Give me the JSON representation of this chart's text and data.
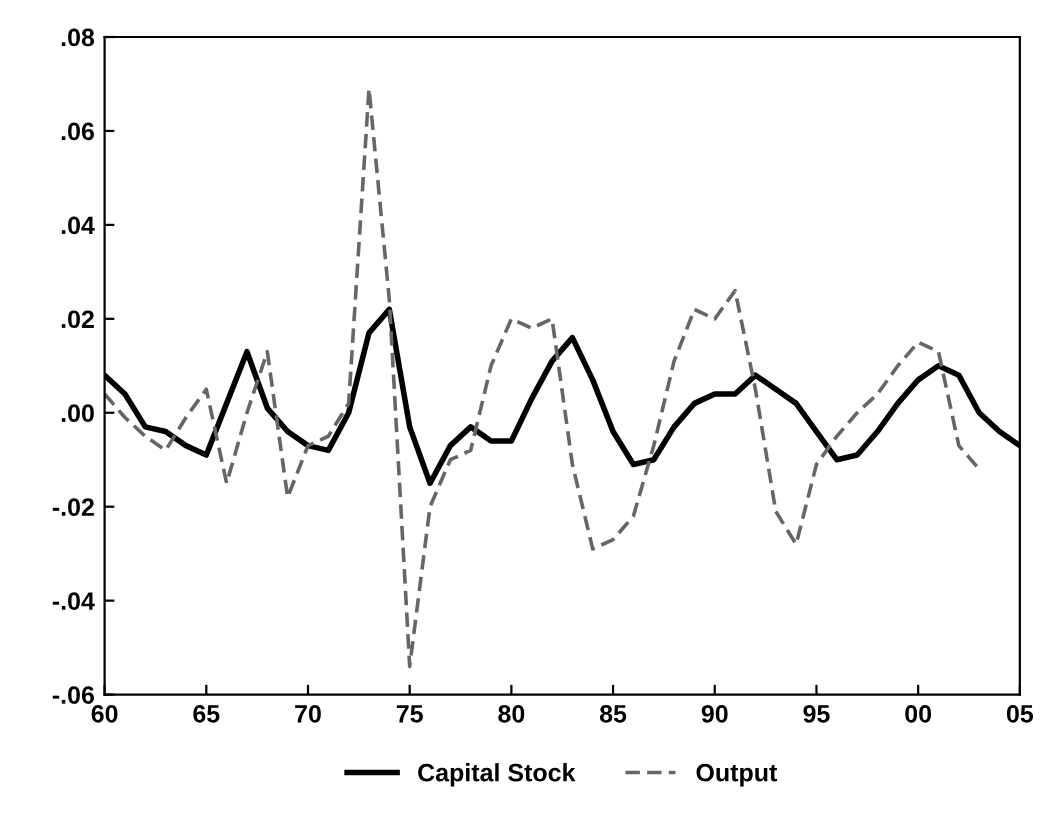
{
  "chart_data": {
    "type": "line",
    "x": [
      1960,
      1961,
      1962,
      1963,
      1964,
      1965,
      1966,
      1967,
      1968,
      1969,
      1970,
      1971,
      1972,
      1973,
      1974,
      1975,
      1976,
      1977,
      1978,
      1979,
      1980,
      1981,
      1982,
      1983,
      1984,
      1985,
      1986,
      1987,
      1988,
      1989,
      1990,
      1991,
      1992,
      1993,
      1994,
      1995,
      1996,
      1997,
      1998,
      1999,
      2000,
      2001,
      2002,
      2003,
      2004,
      2005
    ],
    "series": [
      {
        "name": "Capital Stock",
        "color": "#000000",
        "line_style": "solid",
        "values": [
          0.008,
          0.004,
          -0.003,
          -0.004,
          -0.007,
          -0.009,
          0.002,
          0.013,
          0.001,
          -0.004,
          -0.007,
          -0.008,
          0.0,
          0.017,
          0.022,
          -0.003,
          -0.015,
          -0.007,
          -0.003,
          -0.006,
          -0.006,
          0.003,
          0.011,
          0.016,
          0.007,
          -0.004,
          -0.011,
          -0.01,
          -0.003,
          0.002,
          0.004,
          0.004,
          0.008,
          0.005,
          0.002,
          -0.004,
          -0.01,
          -0.009,
          -0.004,
          0.002,
          0.007,
          0.01,
          0.008,
          0.0,
          -0.004,
          -0.007
        ]
      },
      {
        "name": "Output",
        "color": "#666666",
        "line_style": "dashed",
        "values": [
          0.004,
          -0.001,
          -0.005,
          -0.008,
          -0.001,
          0.005,
          -0.015,
          0.0,
          0.013,
          -0.018,
          -0.007,
          -0.005,
          0.002,
          0.069,
          0.024,
          -0.054,
          -0.02,
          -0.01,
          -0.008,
          0.01,
          0.02,
          0.018,
          0.02,
          -0.011,
          -0.029,
          -0.027,
          -0.022,
          -0.007,
          0.011,
          0.022,
          0.02,
          0.026,
          0.005,
          -0.021,
          -0.028,
          -0.011,
          -0.005,
          0.0,
          0.004,
          0.01,
          0.015,
          0.013,
          -0.007,
          -0.012,
          null,
          null
        ]
      }
    ],
    "xlim": [
      1960,
      2005
    ],
    "xticks": [
      {
        "value": 1960,
        "label": "60"
      },
      {
        "value": 1965,
        "label": "65"
      },
      {
        "value": 1970,
        "label": "70"
      },
      {
        "value": 1975,
        "label": "75"
      },
      {
        "value": 1980,
        "label": "80"
      },
      {
        "value": 1985,
        "label": "85"
      },
      {
        "value": 1990,
        "label": "90"
      },
      {
        "value": 1995,
        "label": "95"
      },
      {
        "value": 2000,
        "label": "00"
      },
      {
        "value": 2005,
        "label": "05"
      }
    ],
    "ylim": [
      -0.06,
      0.08
    ],
    "yticks": [
      {
        "value": -0.06,
        "label": "-.06"
      },
      {
        "value": -0.04,
        "label": "-.04"
      },
      {
        "value": -0.02,
        "label": "-.02"
      },
      {
        "value": 0.0,
        "label": ".00"
      },
      {
        "value": 0.02,
        "label": ".02"
      },
      {
        "value": 0.04,
        "label": ".04"
      },
      {
        "value": 0.06,
        "label": ".06"
      },
      {
        "value": 0.08,
        "label": ".08"
      }
    ],
    "grid": false,
    "legend": "bottom"
  }
}
